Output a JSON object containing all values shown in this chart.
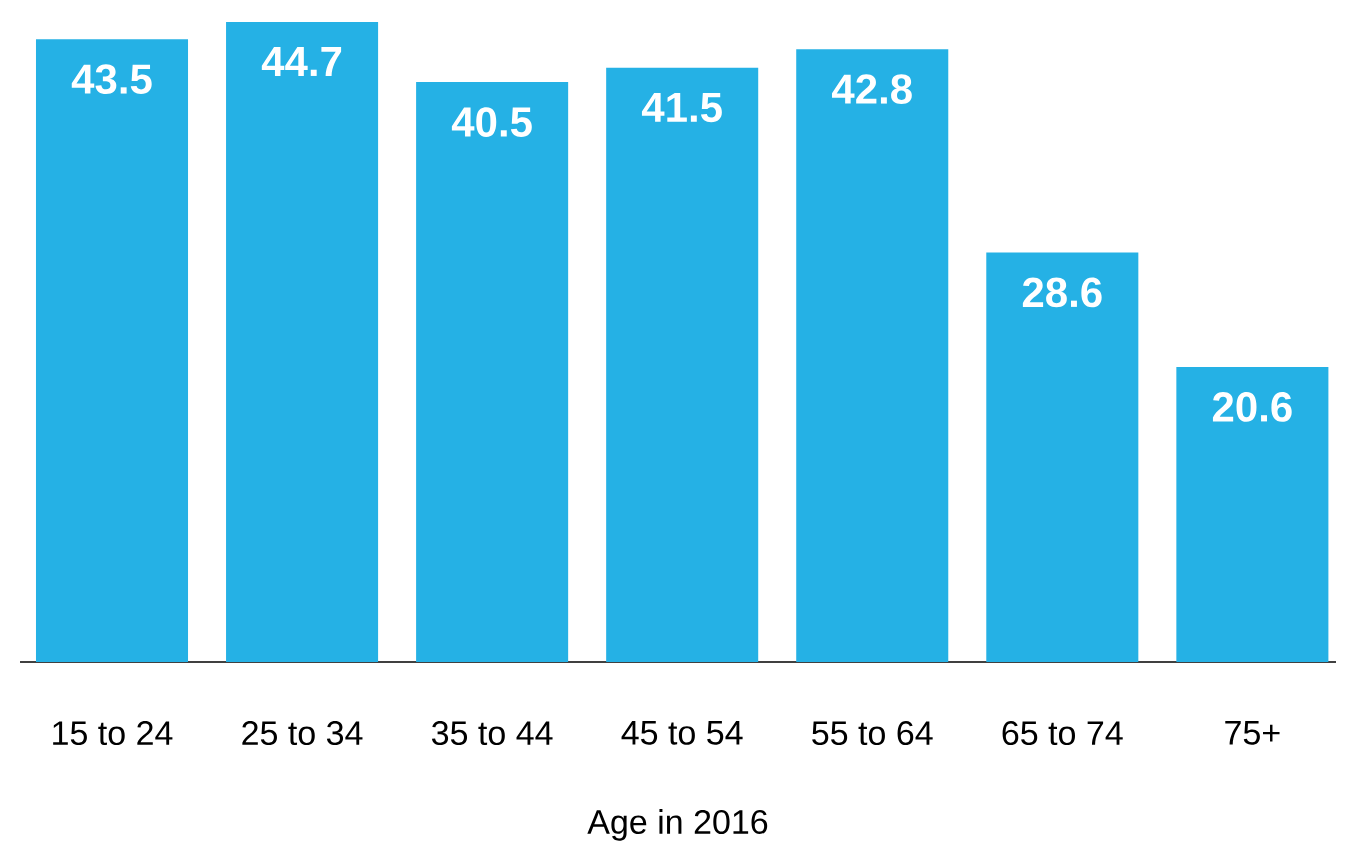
{
  "chart_data": {
    "type": "bar",
    "xlabel": "Age in 2016",
    "categories": [
      "15 to 24",
      "25 to 34",
      "35 to 44",
      "45 to 54",
      "55 to 64",
      "65 to 74",
      "75+"
    ],
    "values": [
      43.5,
      44.7,
      40.5,
      41.5,
      42.8,
      28.6,
      20.6
    ],
    "color": "#25b1e5",
    "data_labels": true
  }
}
